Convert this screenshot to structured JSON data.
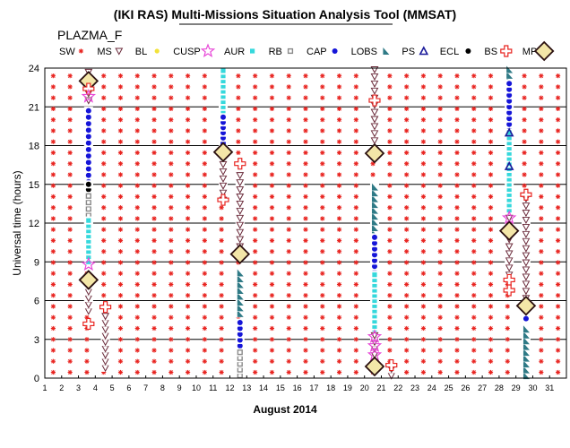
{
  "chart_data": {
    "type": "scatter",
    "title": "(IKI RAS) Multi-Missions Situation Analysis Tool (MMSAT)",
    "subtitle": "PLAZMA_F",
    "xlabel": "August 2014",
    "ylabel": "Universal time (hours)",
    "xlim": [
      1,
      32
    ],
    "ylim": [
      0,
      24
    ],
    "x_ticks": [
      1,
      2,
      3,
      4,
      5,
      6,
      7,
      8,
      9,
      10,
      11,
      12,
      13,
      14,
      15,
      16,
      17,
      18,
      19,
      20,
      21,
      22,
      23,
      24,
      25,
      26,
      27,
      28,
      29,
      30,
      31
    ],
    "y_ticks": [
      0,
      3,
      6,
      9,
      12,
      15,
      18,
      21,
      24
    ],
    "grid": true,
    "legend_position": "top",
    "legend": [
      {
        "label": "SW",
        "marker": "sw",
        "color": "#e8231f"
      },
      {
        "label": "MS",
        "marker": "ms",
        "color": "#6a2a3a"
      },
      {
        "label": "BL",
        "marker": "bl",
        "color": "#f2e23a"
      },
      {
        "label": "CUSP",
        "marker": "cusp",
        "color": "#e84ad8"
      },
      {
        "label": "AUR",
        "marker": "aur",
        "color": "#35d8dc"
      },
      {
        "label": "RB",
        "marker": "rb",
        "color": "#8a8a8a"
      },
      {
        "label": "CAP",
        "marker": "cap",
        "color": "#1515d8"
      },
      {
        "label": "LOBS",
        "marker": "lobs",
        "color": "#2f7a86"
      },
      {
        "label": "PS",
        "marker": "ps",
        "color": "#1a1a9a"
      },
      {
        "label": "ECL",
        "marker": "ecl",
        "color": "#000000"
      },
      {
        "label": "BS",
        "marker": "bs",
        "color": "#e8231f"
      },
      {
        "label": "MP",
        "marker": "mp",
        "color": "#7a2020"
      }
    ],
    "sw_background": {
      "x_start": 1.5,
      "x_step": 1,
      "x_count": 31,
      "y_step": 0.85
    },
    "region_series": [
      {
        "region": "MS",
        "x": 3.6,
        "y_from": 21.5,
        "y_to": 24.0,
        "step": 0.55
      },
      {
        "region": "CAP",
        "x": 3.6,
        "y_from": 15.2,
        "y_to": 21.0,
        "step": 0.5
      },
      {
        "region": "ECL",
        "x": 3.6,
        "y_from": 14.6,
        "y_to": 15.0,
        "step": 0.4
      },
      {
        "region": "RB",
        "x": 3.6,
        "y_from": 12.6,
        "y_to": 14.2,
        "step": 0.5
      },
      {
        "region": "AUR",
        "x": 3.6,
        "y_from": 9.0,
        "y_to": 12.2,
        "step": 0.4
      },
      {
        "region": "MS",
        "x": 3.6,
        "y_from": 5.2,
        "y_to": 7.2,
        "step": 0.5
      },
      {
        "region": "MS",
        "x": 4.6,
        "y_from": 0.8,
        "y_to": 5.2,
        "step": 0.5
      },
      {
        "region": "AUR",
        "x": 11.6,
        "y_from": 20.2,
        "y_to": 23.8,
        "step": 0.4
      },
      {
        "region": "CAP",
        "x": 11.6,
        "y_from": 18.2,
        "y_to": 20.2,
        "step": 0.4
      },
      {
        "region": "MS",
        "x": 11.6,
        "y_from": 13.8,
        "y_to": 16.6,
        "step": 0.55
      },
      {
        "region": "MS",
        "x": 12.6,
        "y_from": 10.2,
        "y_to": 16.0,
        "step": 0.55
      },
      {
        "region": "LOBS",
        "x": 12.6,
        "y_from": 5.0,
        "y_to": 8.5,
        "step": 0.45
      },
      {
        "region": "CAP",
        "x": 12.6,
        "y_from": 2.5,
        "y_to": 4.6,
        "step": 0.45
      },
      {
        "region": "RB",
        "x": 12.6,
        "y_from": 0.2,
        "y_to": 2.2,
        "step": 0.45
      },
      {
        "region": "MS",
        "x": 20.6,
        "y_from": 18.4,
        "y_to": 24.0,
        "step": 0.55
      },
      {
        "region": "LOBS",
        "x": 20.6,
        "y_from": 11.2,
        "y_to": 14.8,
        "step": 0.45
      },
      {
        "region": "CAP",
        "x": 20.6,
        "y_from": 8.2,
        "y_to": 11.0,
        "step": 0.45
      },
      {
        "region": "AUR",
        "x": 20.6,
        "y_from": 3.6,
        "y_to": 8.0,
        "step": 0.4
      },
      {
        "region": "MS",
        "x": 20.6,
        "y_from": 1.8,
        "y_to": 3.4,
        "step": 0.5
      },
      {
        "region": "MS",
        "x": 21.6,
        "y_from": 0.2,
        "y_to": 1.0,
        "step": 0.5
      },
      {
        "region": "LOBS",
        "x": 28.6,
        "y_from": 23.0,
        "y_to": 24.0,
        "step": 0.45
      },
      {
        "region": "CAP",
        "x": 28.6,
        "y_from": 19.2,
        "y_to": 23.0,
        "step": 0.45
      },
      {
        "region": "AUR",
        "x": 28.6,
        "y_from": 13.0,
        "y_to": 19.0,
        "step": 0.4
      },
      {
        "region": "MS",
        "x": 28.6,
        "y_from": 8.0,
        "y_to": 12.4,
        "step": 0.55
      },
      {
        "region": "MS",
        "x": 29.6,
        "y_from": 6.2,
        "y_to": 14.4,
        "step": 0.55
      },
      {
        "region": "CAP",
        "x": 29.6,
        "y_from": 4.6,
        "y_to": 5.0,
        "step": 0.45
      },
      {
        "region": "LOBS",
        "x": 29.6,
        "y_from": 0.2,
        "y_to": 4.2,
        "step": 0.45
      }
    ],
    "markers": [
      {
        "region": "MP",
        "x": 3.6,
        "y": 23.0
      },
      {
        "region": "BS",
        "x": 3.6,
        "y": 22.4
      },
      {
        "region": "CUSP",
        "x": 3.6,
        "y": 21.8
      },
      {
        "region": "CUSP",
        "x": 3.6,
        "y": 8.8
      },
      {
        "region": "MP",
        "x": 3.6,
        "y": 7.6
      },
      {
        "region": "BS",
        "x": 3.6,
        "y": 4.2
      },
      {
        "region": "BS",
        "x": 4.6,
        "y": 5.5
      },
      {
        "region": "MP",
        "x": 11.6,
        "y": 17.5
      },
      {
        "region": "BS",
        "x": 12.6,
        "y": 16.6
      },
      {
        "region": "BS",
        "x": 11.6,
        "y": 13.8
      },
      {
        "region": "MP",
        "x": 12.6,
        "y": 9.6
      },
      {
        "region": "BS",
        "x": 20.6,
        "y": 21.5
      },
      {
        "region": "MP",
        "x": 20.6,
        "y": 17.4
      },
      {
        "region": "CUSP",
        "x": 20.6,
        "y": 3.2
      },
      {
        "region": "CUSP",
        "x": 20.6,
        "y": 2.5
      },
      {
        "region": "CUSP",
        "x": 20.6,
        "y": 1.8
      },
      {
        "region": "MP",
        "x": 20.6,
        "y": 0.9
      },
      {
        "region": "BS",
        "x": 21.6,
        "y": 1.0
      },
      {
        "region": "PS",
        "x": 28.6,
        "y": 19.0
      },
      {
        "region": "PS",
        "x": 28.6,
        "y": 16.4
      },
      {
        "region": "CUSP",
        "x": 28.6,
        "y": 12.4
      },
      {
        "region": "MP",
        "x": 28.6,
        "y": 11.4
      },
      {
        "region": "BS",
        "x": 28.6,
        "y": 7.6
      },
      {
        "region": "BS",
        "x": 28.6,
        "y": 6.8
      },
      {
        "region": "BS",
        "x": 29.6,
        "y": 14.2
      },
      {
        "region": "MP",
        "x": 29.6,
        "y": 5.6
      }
    ]
  }
}
